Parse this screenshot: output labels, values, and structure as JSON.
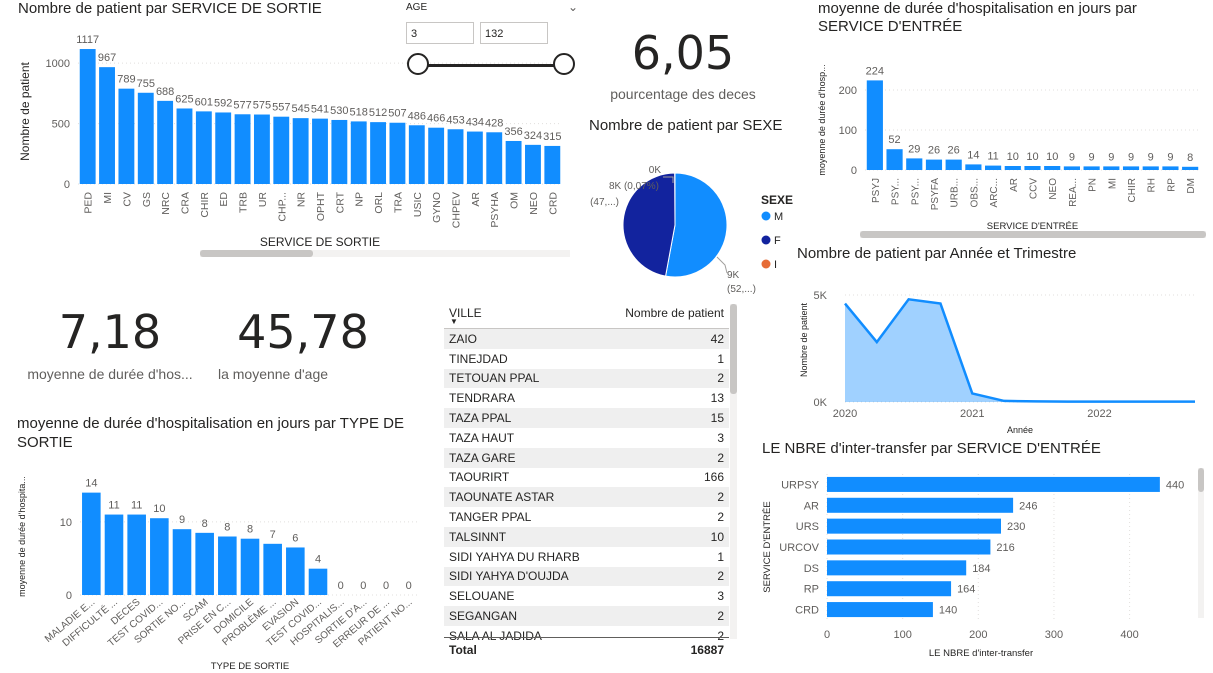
{
  "slicer": {
    "label": "AGE",
    "min_value": "3",
    "max_value": "132"
  },
  "kpis": {
    "deces": {
      "value": "6,05",
      "label": "pourcentage des deces"
    },
    "duree": {
      "value": "7,18",
      "label": "moyenne de durée d'hos..."
    },
    "age": {
      "value": "45,78",
      "label": "la moyenne d'age"
    }
  },
  "chart_data": [
    {
      "id": "sortie",
      "type": "bar",
      "title": "Nombre de patient par SERVICE DE SORTIE",
      "xlabel": "SERVICE DE SORTIE",
      "ylabel": "Nombre de patient",
      "ylim": [
        0,
        1200
      ],
      "yticks": [
        "0",
        "500",
        "1000"
      ],
      "categories": [
        "PED",
        "MI",
        "CV",
        "GS",
        "NRC",
        "CRA",
        "CHIR",
        "ED",
        "TRB",
        "UR",
        "CHP...",
        "NR",
        "OPHT",
        "CRT",
        "NP",
        "ORL",
        "TRA",
        "USIC",
        "GYNO",
        "CHPEV",
        "AR",
        "PSYHA",
        "OM",
        "NEO",
        "CRD"
      ],
      "values": [
        1117,
        967,
        789,
        755,
        688,
        625,
        601,
        592,
        577,
        575,
        557,
        545,
        541,
        530,
        518,
        512,
        507,
        486,
        466,
        453,
        434,
        428,
        356,
        324,
        315
      ],
      "color": "#118dff"
    },
    {
      "id": "entree_duree",
      "type": "bar",
      "title": "moyenne de durée d'hospitalisation en jours par SERVICE D'ENTRÉE",
      "xlabel": "SERVICE D'ENTRÉE",
      "ylabel": "moyenne de durée d'hosp...",
      "ylim": [
        0,
        250
      ],
      "yticks": [
        "0",
        "100",
        "200"
      ],
      "categories": [
        "PSYJ",
        "PSY...",
        "PSY...",
        "PSYFA",
        "URB...",
        "OBS...",
        "ARC...",
        "AR",
        "CCV",
        "NEO",
        "REA...",
        "PN",
        "MI",
        "CHIR",
        "RH",
        "RP",
        "DM"
      ],
      "values": [
        224,
        52,
        29,
        26,
        26,
        14,
        11,
        10,
        10,
        10,
        9,
        9,
        9,
        9,
        9,
        9,
        8
      ],
      "color": "#118dff"
    },
    {
      "id": "sexe",
      "type": "pie",
      "title": "Nombre de patient par SEXE",
      "legend_title": "SEXE",
      "labels": [
        "M",
        "F",
        "I"
      ],
      "values": [
        9000,
        8000,
        12
      ],
      "colors": [
        "#118dff",
        "#12239e",
        "#e66c37"
      ],
      "data_labels": [
        "9K",
        "8K (0,07%)",
        "0K"
      ],
      "data_labels_2": [
        "(52,...)",
        "(47,...)",
        ""
      ]
    },
    {
      "id": "trimestre",
      "type": "area",
      "title": "Nombre de patient par Année et Trimestre",
      "xlabel": "Année",
      "ylabel": "Nombre de patient",
      "ylim": [
        0,
        5000
      ],
      "yticks": [
        "0K",
        "5K"
      ],
      "xticks": [
        "2020",
        "2021",
        "2022"
      ],
      "x": [
        "2020 Q1",
        "2020 Q2",
        "2020 Q3",
        "2020 Q4",
        "2021 Q1",
        "2021 Q2",
        "2021 Q3",
        "2021 Q4",
        "2022 Q1",
        "2022 Q2",
        "2022 Q3",
        "2022 Q4"
      ],
      "values": [
        4600,
        2800,
        4800,
        4600,
        400,
        50,
        30,
        20,
        20,
        20,
        20,
        20
      ],
      "color": "#118dff"
    },
    {
      "id": "type_sortie",
      "type": "bar",
      "title": "moyenne de durée d'hospitalisation en jours par TYPE DE SORTIE",
      "title_line1": "moyenne de durée d'hospitalisation en jours par TYPE DE",
      "title_line2": "SORTIE",
      "xlabel": "TYPE DE SORTIE",
      "ylabel": "moyenne de durée d'hospita...",
      "ylim": [
        0,
        16
      ],
      "yticks": [
        "0",
        "10"
      ],
      "categories": [
        "MALADIE E...",
        "DIFFICULTÉ ...",
        "DECES",
        "TEST COVID...",
        "SORTIE NO...",
        "SCAM",
        "PRISE EN C...",
        "DOMICILE",
        "PROBLÈME ...",
        "EVASION",
        "TEST COVID...",
        "HOSPITALIS...",
        "SORTIE D'A...",
        "ERREUR DE ...",
        "PATIENT NO..."
      ],
      "values": [
        14,
        11,
        11,
        10.5,
        9,
        8.5,
        8,
        7.7,
        7,
        6.5,
        3.6,
        0,
        0,
        0,
        0
      ],
      "data_labels": [
        "14",
        "11",
        "11",
        "10",
        "9",
        "8",
        "8",
        "8",
        "7",
        "6",
        "4",
        "0",
        "0",
        "0",
        "0"
      ],
      "color": "#118dff"
    },
    {
      "id": "transfer",
      "type": "bar",
      "orientation": "horizontal",
      "title": "LE NBRE d'inter-transfer par SERVICE D'ENTRÉE",
      "xlabel": "LE NBRE d'inter-transfer",
      "ylabel": "SERVICE D'ENTRÉE",
      "xlim": [
        0,
        460
      ],
      "xticks": [
        "0",
        "100",
        "200",
        "300",
        "400"
      ],
      "categories": [
        "URPSY",
        "AR",
        "URS",
        "URCOV",
        "DS",
        "RP",
        "CRD"
      ],
      "values": [
        440,
        246,
        230,
        216,
        184,
        164,
        140
      ],
      "color": "#118dff"
    }
  ],
  "ville_table": {
    "col1": "VILLE",
    "col2": "Nombre de patient",
    "rows": [
      [
        "ZAIO",
        "42"
      ],
      [
        "TINEJDAD",
        "1"
      ],
      [
        "TETOUAN PPAL",
        "2"
      ],
      [
        "TENDRARA",
        "13"
      ],
      [
        "TAZA PPAL",
        "15"
      ],
      [
        "TAZA HAUT",
        "3"
      ],
      [
        "TAZA GARE",
        "2"
      ],
      [
        "TAOURIRT",
        "166"
      ],
      [
        "TAOUNATE ASTAR",
        "2"
      ],
      [
        "TANGER PPAL",
        "2"
      ],
      [
        "TALSINNT",
        "10"
      ],
      [
        "SIDI YAHYA DU RHARB",
        "1"
      ],
      [
        "SIDI YAHYA D'OUJDA",
        "2"
      ],
      [
        "SELOUANE",
        "3"
      ],
      [
        "SEGANGAN",
        "2"
      ],
      [
        "SALA AL JADIDA",
        "2"
      ]
    ],
    "total_label": "Total",
    "total_value": "16887"
  }
}
